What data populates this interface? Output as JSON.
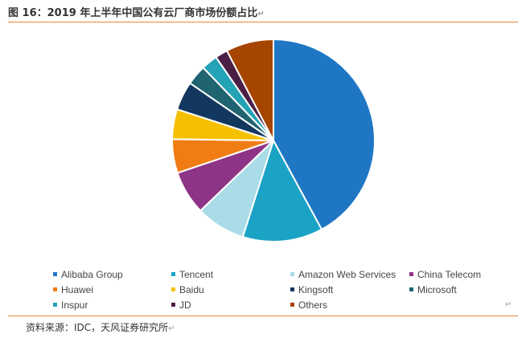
{
  "header": {
    "title": "图 16：2019 年上半年中国公有云厂商市场份额占比",
    "return_mark": "↵"
  },
  "footer": {
    "source": "资料来源：IDC，天风证券研究所"
  },
  "chart_data": {
    "type": "pie",
    "title": "",
    "start_angle_deg": 0,
    "direction": "clockwise",
    "legend_position": "bottom",
    "series": [
      {
        "name": "Alibaba Group",
        "value": 42.1,
        "color": "#1f77c4"
      },
      {
        "name": "Tencent",
        "value": 12.8,
        "color": "#1ba3c6"
      },
      {
        "name": "Amazon Web Services",
        "value": 7.9,
        "color": "#a9dbe8"
      },
      {
        "name": "China Telecom",
        "value": 7.0,
        "color": "#8e3486"
      },
      {
        "name": "Huawei",
        "value": 5.4,
        "color": "#f07d13"
      },
      {
        "name": "Baidu",
        "value": 4.8,
        "color": "#f5c000"
      },
      {
        "name": "Kingsoft",
        "value": 4.6,
        "color": "#13385f"
      },
      {
        "name": "Microsoft",
        "value": 3.2,
        "color": "#1f6470"
      },
      {
        "name": "Inspur",
        "value": 2.6,
        "color": "#24a2b6"
      },
      {
        "name": "JD",
        "value": 2.0,
        "color": "#4b1f45"
      },
      {
        "name": "Others",
        "value": 7.6,
        "color": "#a54500"
      }
    ]
  }
}
